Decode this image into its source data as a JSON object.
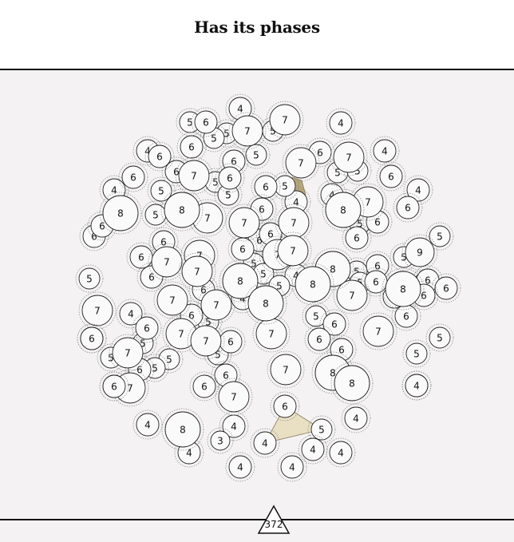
{
  "header": {
    "title": "Has its phases"
  },
  "footer": {
    "page_number": "372"
  },
  "colors": {
    "background": "#f4f2f2",
    "circle_fill": "#fbfafa",
    "circle_stroke": "#222222",
    "halo_stroke": "#888888",
    "highlight_fill_small": "#b6a57a",
    "highlight_fill_large": "#e9e0c4"
  },
  "nodes": [
    {
      "label": "4"
    },
    {
      "label": "4"
    },
    {
      "label": "4"
    },
    {
      "label": "4"
    },
    {
      "label": "4"
    },
    {
      "label": "4"
    },
    {
      "label": "4"
    },
    {
      "label": "4"
    },
    {
      "label": "4"
    },
    {
      "label": "4"
    },
    {
      "label": "4"
    },
    {
      "label": "4"
    },
    {
      "label": "4"
    },
    {
      "label": "4"
    },
    {
      "label": "4"
    },
    {
      "label": "4"
    },
    {
      "label": "4"
    },
    {
      "label": "4"
    },
    {
      "label": "4"
    },
    {
      "label": "4"
    },
    {
      "label": "5"
    },
    {
      "label": "5"
    },
    {
      "label": "5"
    },
    {
      "label": "5"
    },
    {
      "label": "5"
    },
    {
      "label": "5"
    },
    {
      "label": "5"
    },
    {
      "label": "5"
    },
    {
      "label": "5"
    },
    {
      "label": "5"
    },
    {
      "label": "5"
    },
    {
      "label": "5"
    },
    {
      "label": "5"
    },
    {
      "label": "5"
    },
    {
      "label": "5"
    },
    {
      "label": "5"
    },
    {
      "label": "5"
    },
    {
      "label": "5"
    },
    {
      "label": "5"
    },
    {
      "label": "5"
    },
    {
      "label": "5"
    },
    {
      "label": "5"
    },
    {
      "label": "5"
    },
    {
      "label": "5"
    },
    {
      "label": "5"
    },
    {
      "label": "5"
    },
    {
      "label": "5"
    },
    {
      "label": "5"
    },
    {
      "label": "5"
    },
    {
      "label": "5"
    },
    {
      "label": "6"
    },
    {
      "label": "6"
    },
    {
      "label": "6"
    },
    {
      "label": "6"
    },
    {
      "label": "6"
    },
    {
      "label": "6"
    },
    {
      "label": "6"
    },
    {
      "label": "6"
    },
    {
      "label": "6"
    },
    {
      "label": "6"
    },
    {
      "label": "6"
    },
    {
      "label": "6"
    },
    {
      "label": "6"
    },
    {
      "label": "6"
    },
    {
      "label": "6"
    },
    {
      "label": "6"
    },
    {
      "label": "6"
    },
    {
      "label": "6"
    },
    {
      "label": "6"
    },
    {
      "label": "6"
    },
    {
      "label": "6"
    },
    {
      "label": "6"
    },
    {
      "label": "6"
    },
    {
      "label": "6"
    },
    {
      "label": "6"
    },
    {
      "label": "6"
    },
    {
      "label": "6"
    },
    {
      "label": "6"
    },
    {
      "label": "6"
    },
    {
      "label": "6"
    },
    {
      "label": "6"
    },
    {
      "label": "6"
    },
    {
      "label": "6"
    },
    {
      "label": "6"
    },
    {
      "label": "6"
    },
    {
      "label": "6"
    },
    {
      "label": "6"
    },
    {
      "label": "6"
    },
    {
      "label": "6"
    },
    {
      "label": "7"
    },
    {
      "label": "7"
    },
    {
      "label": "7"
    },
    {
      "label": "7"
    },
    {
      "label": "7"
    },
    {
      "label": "7"
    },
    {
      "label": "7"
    },
    {
      "label": "7"
    },
    {
      "label": "7"
    },
    {
      "label": "7"
    },
    {
      "label": "7"
    },
    {
      "label": "7"
    },
    {
      "label": "7"
    },
    {
      "label": "7"
    },
    {
      "label": "7"
    },
    {
      "label": "7"
    },
    {
      "label": "7"
    },
    {
      "label": "7"
    },
    {
      "label": "7"
    },
    {
      "label": "7"
    },
    {
      "label": "7"
    },
    {
      "label": "7"
    },
    {
      "label": "7"
    },
    {
      "label": "7"
    },
    {
      "label": "7"
    },
    {
      "label": "7"
    },
    {
      "label": "8"
    },
    {
      "label": "8"
    },
    {
      "label": "8"
    },
    {
      "label": "8"
    },
    {
      "label": "8"
    },
    {
      "label": "8"
    },
    {
      "label": "8"
    },
    {
      "label": "8"
    },
    {
      "label": "8"
    },
    {
      "label": "8"
    },
    {
      "label": "8"
    },
    {
      "label": "9"
    },
    {
      "label": "3"
    },
    {
      "label": "5"
    },
    {
      "label": "5"
    },
    {
      "label": "6"
    },
    {
      "label": "4"
    },
    {
      "label": "4"
    },
    {
      "label": "4"
    },
    {
      "label": "6"
    },
    {
      "label": "6"
    },
    {
      "label": "4"
    }
  ],
  "highlights": [
    {
      "name": "small-highlight-region",
      "fill": "highlight_fill_small"
    },
    {
      "name": "large-highlight-region",
      "fill": "highlight_fill_large"
    }
  ]
}
